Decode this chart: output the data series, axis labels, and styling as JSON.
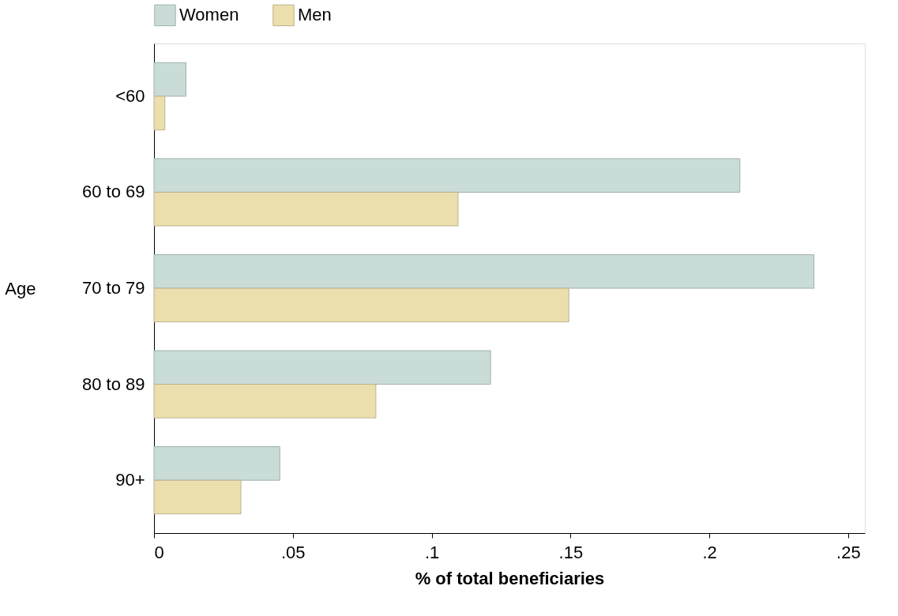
{
  "chart_data": {
    "type": "bar",
    "orientation": "horizontal",
    "ylabel": "Age",
    "xlabel": "% of total beneficiaries",
    "categories": [
      "<60",
      "60 to 69",
      "70 to 79",
      "80 to 89",
      "90+"
    ],
    "series": [
      {
        "name": "Women",
        "color": "#c9dcd8",
        "values": [
          0.0115,
          0.211,
          0.2377,
          0.1212,
          0.0453
        ]
      },
      {
        "name": "Men",
        "color": "#ebdfae",
        "values": [
          0.0039,
          0.1095,
          0.1494,
          0.0799,
          0.0313
        ]
      }
    ],
    "xlim": [
      0,
      0.256
    ],
    "xticks": [
      0,
      {
        "value": 0.05,
        "label": ".05"
      },
      {
        "value": 0.1,
        "label": ".1"
      },
      {
        "value": 0.15,
        "label": ".15"
      },
      {
        "value": 0.2,
        "label": ".2"
      },
      {
        "value": 0.25,
        "label": ".25"
      }
    ],
    "grid": false,
    "legend": "top"
  }
}
